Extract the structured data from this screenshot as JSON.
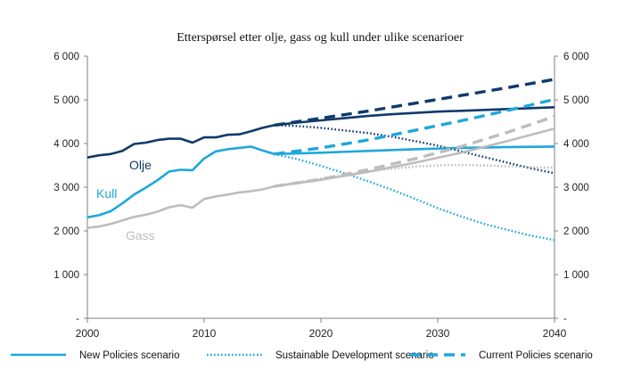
{
  "chart_data": {
    "type": "line",
    "title": "Etterspørsel etter olje, gass og kull under ulike scenarioer",
    "xlabel": "",
    "ylabel": "",
    "xlim": [
      2000,
      2040
    ],
    "ylim": [
      0,
      6000
    ],
    "x_ticks": [
      "2000",
      "2010",
      "2020",
      "2030",
      "2040"
    ],
    "x_tick_values": [
      2000,
      2010,
      2020,
      2030,
      2040
    ],
    "y_ticks_left": [
      "-",
      "1 000",
      "2 000",
      "3 000",
      "4 000",
      "5 000",
      "6 000"
    ],
    "y_ticks_right": [
      "-",
      "1 000",
      "2 000",
      "3 000",
      "4 000",
      "5 000",
      "6 000"
    ],
    "y_tick_values": [
      0,
      1000,
      2000,
      3000,
      4000,
      5000,
      6000
    ],
    "colors": {
      "olje": "#0e3a6b",
      "kull": "#1ea7dc",
      "gass": "#bdbdbd",
      "axis": "#7f7f7f"
    },
    "series_labels": [
      {
        "name": "olje",
        "text": "Olje"
      },
      {
        "name": "kull",
        "text": "Kull"
      },
      {
        "name": "gass",
        "text": "Gass"
      }
    ],
    "legend": [
      {
        "style": "solid",
        "label": "New Policies scenario"
      },
      {
        "style": "dotted",
        "label": "Sustainable Development scenario"
      },
      {
        "style": "dashed",
        "label": "Current Policies scenario"
      }
    ],
    "series": [
      {
        "name": "Olje historical",
        "fuel": "olje",
        "style": "solid",
        "x": [
          2000,
          2001,
          2002,
          2003,
          2004,
          2005,
          2006,
          2007,
          2008,
          2009,
          2010,
          2011,
          2012,
          2013,
          2014,
          2015,
          2016
        ],
        "values": [
          3680,
          3730,
          3760,
          3830,
          3990,
          4020,
          4080,
          4110,
          4110,
          4020,
          4140,
          4140,
          4200,
          4210,
          4280,
          4360,
          4420
        ]
      },
      {
        "name": "Olje New Policies",
        "fuel": "olje",
        "style": "solid",
        "x": [
          2016,
          2018,
          2020,
          2022,
          2024,
          2026,
          2028,
          2030,
          2032,
          2034,
          2036,
          2038,
          2040
        ],
        "values": [
          4420,
          4480,
          4530,
          4580,
          4630,
          4670,
          4700,
          4730,
          4750,
          4770,
          4790,
          4810,
          4830
        ]
      },
      {
        "name": "Olje Sustainable Development",
        "fuel": "olje",
        "style": "dotted",
        "x": [
          2016,
          2018,
          2020,
          2022,
          2024,
          2026,
          2028,
          2030,
          2032,
          2034,
          2036,
          2038,
          2040
        ],
        "values": [
          4420,
          4400,
          4360,
          4300,
          4240,
          4160,
          4060,
          3950,
          3820,
          3690,
          3560,
          3430,
          3320
        ]
      },
      {
        "name": "Olje Current Policies",
        "fuel": "olje",
        "style": "dashed",
        "x": [
          2016,
          2020,
          2024,
          2028,
          2032,
          2036,
          2040
        ],
        "values": [
          4420,
          4580,
          4740,
          4920,
          5100,
          5280,
          5470
        ]
      },
      {
        "name": "Kull historical",
        "fuel": "kull",
        "style": "solid",
        "x": [
          2000,
          2001,
          2002,
          2003,
          2004,
          2005,
          2006,
          2007,
          2008,
          2009,
          2010,
          2011,
          2012,
          2013,
          2014,
          2015,
          2016
        ],
        "values": [
          2310,
          2360,
          2450,
          2630,
          2830,
          2990,
          3160,
          3360,
          3400,
          3390,
          3660,
          3820,
          3870,
          3900,
          3930,
          3840,
          3760
        ]
      },
      {
        "name": "Kull New Policies",
        "fuel": "kull",
        "style": "solid",
        "x": [
          2016,
          2020,
          2024,
          2028,
          2032,
          2036,
          2040
        ],
        "values": [
          3760,
          3790,
          3830,
          3870,
          3900,
          3920,
          3930
        ]
      },
      {
        "name": "Kull Sustainable Development",
        "fuel": "kull",
        "style": "dotted",
        "x": [
          2016,
          2018,
          2020,
          2022,
          2024,
          2026,
          2028,
          2030,
          2032,
          2034,
          2036,
          2038,
          2040
        ],
        "values": [
          3760,
          3640,
          3490,
          3320,
          3140,
          2950,
          2740,
          2520,
          2330,
          2160,
          2020,
          1890,
          1790
        ]
      },
      {
        "name": "Kull Current Policies",
        "fuel": "kull",
        "style": "dashed",
        "x": [
          2016,
          2020,
          2024,
          2028,
          2032,
          2036,
          2040
        ],
        "values": [
          3760,
          3900,
          4080,
          4300,
          4520,
          4760,
          5010
        ]
      },
      {
        "name": "Gass historical",
        "fuel": "gass",
        "style": "solid",
        "x": [
          2000,
          2001,
          2002,
          2003,
          2004,
          2005,
          2006,
          2007,
          2008,
          2009,
          2010,
          2011,
          2012,
          2013,
          2014,
          2015,
          2016
        ],
        "values": [
          2070,
          2100,
          2160,
          2240,
          2320,
          2370,
          2440,
          2540,
          2590,
          2530,
          2730,
          2790,
          2830,
          2880,
          2910,
          2950,
          3020
        ]
      },
      {
        "name": "Gass New Policies",
        "fuel": "gass",
        "style": "solid",
        "x": [
          2016,
          2020,
          2024,
          2028,
          2032,
          2036,
          2040
        ],
        "values": [
          3020,
          3170,
          3350,
          3560,
          3790,
          4060,
          4340
        ]
      },
      {
        "name": "Gass Sustainable Development",
        "fuel": "gass",
        "style": "dotted",
        "x": [
          2016,
          2018,
          2020,
          2022,
          2024,
          2026,
          2028,
          2030,
          2032,
          2034,
          2036,
          2038,
          2040
        ],
        "values": [
          3020,
          3110,
          3200,
          3280,
          3360,
          3420,
          3470,
          3500,
          3510,
          3500,
          3480,
          3460,
          3450
        ]
      },
      {
        "name": "Gass Current Policies",
        "fuel": "gass",
        "style": "dashed",
        "x": [
          2016,
          2020,
          2024,
          2028,
          2032,
          2036,
          2040
        ],
        "values": [
          3020,
          3180,
          3400,
          3650,
          3930,
          4260,
          4620
        ]
      }
    ]
  }
}
